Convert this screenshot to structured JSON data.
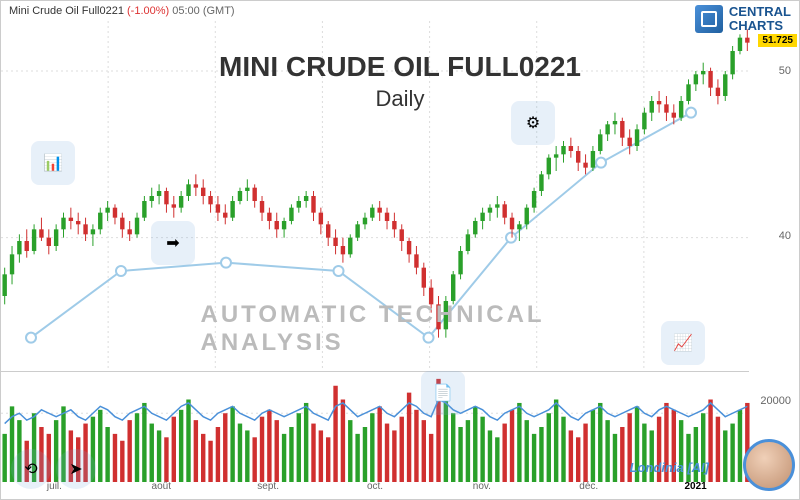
{
  "header": {
    "ticker": "Mini Crude Oil Full0221",
    "change": "(-1.00%)",
    "time": "05:00 (GMT)"
  },
  "logo": {
    "line1": "CENTRAL",
    "line2": "CHARTS"
  },
  "title": {
    "main": "MINI CRUDE OIL FULL0221",
    "sub": "Daily"
  },
  "watermark": "AUTOMATIC  TECHNICAL  ANALYSIS",
  "brand": "Londinia [AI]",
  "price_badge": "51.725",
  "chart": {
    "type": "candlestick",
    "ylim": [
      32,
      53
    ],
    "yticks": [
      40,
      50
    ],
    "xlabels": [
      "juil.",
      "août",
      "sept.",
      "oct.",
      "nov.",
      "déc.",
      "2021"
    ],
    "background_color": "#ffffff",
    "grid_color": "#dddddd",
    "up_color": "#2aa02a",
    "down_color": "#d03030",
    "trend_line_color": "#9fcbe8",
    "trend_marker_color": "#9fcbe8",
    "title_fontsize": 28,
    "label_fontsize": 11,
    "candles": [
      {
        "o": 36.5,
        "h": 38.2,
        "l": 36.0,
        "c": 37.8
      },
      {
        "o": 37.8,
        "h": 39.5,
        "l": 37.2,
        "c": 39.0
      },
      {
        "o": 39.0,
        "h": 40.2,
        "l": 38.5,
        "c": 39.8
      },
      {
        "o": 39.8,
        "h": 40.5,
        "l": 38.8,
        "c": 39.2
      },
      {
        "o": 39.2,
        "h": 40.8,
        "l": 39.0,
        "c": 40.5
      },
      {
        "o": 40.5,
        "h": 41.2,
        "l": 39.8,
        "c": 40.0
      },
      {
        "o": 40.0,
        "h": 40.5,
        "l": 39.0,
        "c": 39.5
      },
      {
        "o": 39.5,
        "h": 40.8,
        "l": 39.2,
        "c": 40.5
      },
      {
        "o": 40.5,
        "h": 41.5,
        "l": 40.0,
        "c": 41.2
      },
      {
        "o": 41.2,
        "h": 41.8,
        "l": 40.5,
        "c": 41.0
      },
      {
        "o": 41.0,
        "h": 41.5,
        "l": 40.2,
        "c": 40.8
      },
      {
        "o": 40.8,
        "h": 41.2,
        "l": 39.8,
        "c": 40.2
      },
      {
        "o": 40.2,
        "h": 40.8,
        "l": 39.5,
        "c": 40.5
      },
      {
        "o": 40.5,
        "h": 41.8,
        "l": 40.2,
        "c": 41.5
      },
      {
        "o": 41.5,
        "h": 42.2,
        "l": 41.0,
        "c": 41.8
      },
      {
        "o": 41.8,
        "h": 42.0,
        "l": 40.8,
        "c": 41.2
      },
      {
        "o": 41.2,
        "h": 41.5,
        "l": 40.0,
        "c": 40.5
      },
      {
        "o": 40.5,
        "h": 41.0,
        "l": 39.8,
        "c": 40.2
      },
      {
        "o": 40.2,
        "h": 41.5,
        "l": 40.0,
        "c": 41.2
      },
      {
        "o": 41.2,
        "h": 42.5,
        "l": 41.0,
        "c": 42.2
      },
      {
        "o": 42.2,
        "h": 43.0,
        "l": 41.8,
        "c": 42.5
      },
      {
        "o": 42.5,
        "h": 43.2,
        "l": 42.0,
        "c": 42.8
      },
      {
        "o": 42.8,
        "h": 43.0,
        "l": 41.5,
        "c": 42.0
      },
      {
        "o": 42.0,
        "h": 42.5,
        "l": 41.2,
        "c": 41.8
      },
      {
        "o": 41.8,
        "h": 42.8,
        "l": 41.5,
        "c": 42.5
      },
      {
        "o": 42.5,
        "h": 43.5,
        "l": 42.2,
        "c": 43.2
      },
      {
        "o": 43.2,
        "h": 43.8,
        "l": 42.5,
        "c": 43.0
      },
      {
        "o": 43.0,
        "h": 43.5,
        "l": 42.0,
        "c": 42.5
      },
      {
        "o": 42.5,
        "h": 42.8,
        "l": 41.5,
        "c": 42.0
      },
      {
        "o": 42.0,
        "h": 42.5,
        "l": 41.0,
        "c": 41.5
      },
      {
        "o": 41.5,
        "h": 42.0,
        "l": 40.8,
        "c": 41.2
      },
      {
        "o": 41.2,
        "h": 42.5,
        "l": 41.0,
        "c": 42.2
      },
      {
        "o": 42.2,
        "h": 43.0,
        "l": 42.0,
        "c": 42.8
      },
      {
        "o": 42.8,
        "h": 43.5,
        "l": 42.2,
        "c": 43.0
      },
      {
        "o": 43.0,
        "h": 43.2,
        "l": 41.8,
        "c": 42.2
      },
      {
        "o": 42.2,
        "h": 42.5,
        "l": 41.0,
        "c": 41.5
      },
      {
        "o": 41.5,
        "h": 41.8,
        "l": 40.5,
        "c": 41.0
      },
      {
        "o": 41.0,
        "h": 41.5,
        "l": 40.0,
        "c": 40.5
      },
      {
        "o": 40.5,
        "h": 41.2,
        "l": 40.0,
        "c": 41.0
      },
      {
        "o": 41.0,
        "h": 42.0,
        "l": 40.8,
        "c": 41.8
      },
      {
        "o": 41.8,
        "h": 42.5,
        "l": 41.5,
        "c": 42.2
      },
      {
        "o": 42.2,
        "h": 42.8,
        "l": 41.8,
        "c": 42.5
      },
      {
        "o": 42.5,
        "h": 42.8,
        "l": 41.0,
        "c": 41.5
      },
      {
        "o": 41.5,
        "h": 41.8,
        "l": 40.2,
        "c": 40.8
      },
      {
        "o": 40.8,
        "h": 41.0,
        "l": 39.5,
        "c": 40.0
      },
      {
        "o": 40.0,
        "h": 40.5,
        "l": 39.0,
        "c": 39.5
      },
      {
        "o": 39.5,
        "h": 40.0,
        "l": 38.5,
        "c": 39.0
      },
      {
        "o": 39.0,
        "h": 40.2,
        "l": 38.8,
        "c": 40.0
      },
      {
        "o": 40.0,
        "h": 41.0,
        "l": 39.8,
        "c": 40.8
      },
      {
        "o": 40.8,
        "h": 41.5,
        "l": 40.5,
        "c": 41.2
      },
      {
        "o": 41.2,
        "h": 42.0,
        "l": 41.0,
        "c": 41.8
      },
      {
        "o": 41.8,
        "h": 42.2,
        "l": 41.0,
        "c": 41.5
      },
      {
        "o": 41.5,
        "h": 41.8,
        "l": 40.5,
        "c": 41.0
      },
      {
        "o": 41.0,
        "h": 41.5,
        "l": 40.0,
        "c": 40.5
      },
      {
        "o": 40.5,
        "h": 40.8,
        "l": 39.2,
        "c": 39.8
      },
      {
        "o": 39.8,
        "h": 40.0,
        "l": 38.5,
        "c": 39.0
      },
      {
        "o": 39.0,
        "h": 39.5,
        "l": 37.8,
        "c": 38.2
      },
      {
        "o": 38.2,
        "h": 38.5,
        "l": 36.5,
        "c": 37.0
      },
      {
        "o": 37.0,
        "h": 37.5,
        "l": 35.5,
        "c": 36.0
      },
      {
        "o": 36.0,
        "h": 36.5,
        "l": 34.0,
        "c": 34.5
      },
      {
        "o": 34.5,
        "h": 36.5,
        "l": 34.0,
        "c": 36.2
      },
      {
        "o": 36.2,
        "h": 38.0,
        "l": 36.0,
        "c": 37.8
      },
      {
        "o": 37.8,
        "h": 39.5,
        "l": 37.5,
        "c": 39.2
      },
      {
        "o": 39.2,
        "h": 40.5,
        "l": 39.0,
        "c": 40.2
      },
      {
        "o": 40.2,
        "h": 41.2,
        "l": 40.0,
        "c": 41.0
      },
      {
        "o": 41.0,
        "h": 41.8,
        "l": 40.5,
        "c": 41.5
      },
      {
        "o": 41.5,
        "h": 42.0,
        "l": 41.0,
        "c": 41.8
      },
      {
        "o": 41.8,
        "h": 42.5,
        "l": 41.2,
        "c": 42.0
      },
      {
        "o": 42.0,
        "h": 42.2,
        "l": 40.8,
        "c": 41.2
      },
      {
        "o": 41.2,
        "h": 41.5,
        "l": 40.0,
        "c": 40.5
      },
      {
        "o": 40.5,
        "h": 41.0,
        "l": 39.8,
        "c": 40.8
      },
      {
        "o": 40.8,
        "h": 42.0,
        "l": 40.5,
        "c": 41.8
      },
      {
        "o": 41.8,
        "h": 43.0,
        "l": 41.5,
        "c": 42.8
      },
      {
        "o": 42.8,
        "h": 44.0,
        "l": 42.5,
        "c": 43.8
      },
      {
        "o": 43.8,
        "h": 45.0,
        "l": 43.5,
        "c": 44.8
      },
      {
        "o": 44.8,
        "h": 45.5,
        "l": 44.0,
        "c": 45.0
      },
      {
        "o": 45.0,
        "h": 45.8,
        "l": 44.5,
        "c": 45.5
      },
      {
        "o": 45.5,
        "h": 46.0,
        "l": 44.8,
        "c": 45.2
      },
      {
        "o": 45.2,
        "h": 45.5,
        "l": 44.0,
        "c": 44.5
      },
      {
        "o": 44.5,
        "h": 45.0,
        "l": 43.8,
        "c": 44.2
      },
      {
        "o": 44.2,
        "h": 45.5,
        "l": 44.0,
        "c": 45.2
      },
      {
        "o": 45.2,
        "h": 46.5,
        "l": 45.0,
        "c": 46.2
      },
      {
        "o": 46.2,
        "h": 47.0,
        "l": 45.8,
        "c": 46.8
      },
      {
        "o": 46.8,
        "h": 47.5,
        "l": 46.2,
        "c": 47.0
      },
      {
        "o": 47.0,
        "h": 47.2,
        "l": 45.5,
        "c": 46.0
      },
      {
        "o": 46.0,
        "h": 46.5,
        "l": 45.0,
        "c": 45.5
      },
      {
        "o": 45.5,
        "h": 46.8,
        "l": 45.2,
        "c": 46.5
      },
      {
        "o": 46.5,
        "h": 47.8,
        "l": 46.2,
        "c": 47.5
      },
      {
        "o": 47.5,
        "h": 48.5,
        "l": 47.0,
        "c": 48.2
      },
      {
        "o": 48.2,
        "h": 48.8,
        "l": 47.5,
        "c": 48.0
      },
      {
        "o": 48.0,
        "h": 48.5,
        "l": 47.0,
        "c": 47.5
      },
      {
        "o": 47.5,
        "h": 48.0,
        "l": 46.8,
        "c": 47.2
      },
      {
        "o": 47.2,
        "h": 48.5,
        "l": 47.0,
        "c": 48.2
      },
      {
        "o": 48.2,
        "h": 49.5,
        "l": 48.0,
        "c": 49.2
      },
      {
        "o": 49.2,
        "h": 50.0,
        "l": 48.8,
        "c": 49.8
      },
      {
        "o": 49.8,
        "h": 50.5,
        "l": 49.2,
        "c": 50.0
      },
      {
        "o": 50.0,
        "h": 50.2,
        "l": 48.5,
        "c": 49.0
      },
      {
        "o": 49.0,
        "h": 49.5,
        "l": 48.0,
        "c": 48.5
      },
      {
        "o": 48.5,
        "h": 50.0,
        "l": 48.2,
        "c": 49.8
      },
      {
        "o": 49.8,
        "h": 51.5,
        "l": 49.5,
        "c": 51.2
      },
      {
        "o": 51.2,
        "h": 52.2,
        "l": 51.0,
        "c": 52.0
      },
      {
        "o": 52.0,
        "h": 52.5,
        "l": 51.2,
        "c": 51.7
      }
    ],
    "trend_points": [
      {
        "x": 0.04,
        "y": 34
      },
      {
        "x": 0.16,
        "y": 38
      },
      {
        "x": 0.3,
        "y": 38.5
      },
      {
        "x": 0.45,
        "y": 38
      },
      {
        "x": 0.57,
        "y": 34
      },
      {
        "x": 0.68,
        "y": 40
      },
      {
        "x": 0.8,
        "y": 44.5
      },
      {
        "x": 0.92,
        "y": 47.5
      }
    ]
  },
  "volume": {
    "ytick": 20000,
    "ylim": [
      0,
      32000
    ],
    "line_color": "#4a90d9",
    "up_color": "#2aa02a",
    "down_color": "#d03030",
    "bars": [
      14000,
      22000,
      18000,
      12000,
      20000,
      16000,
      14000,
      18000,
      22000,
      15000,
      13000,
      17000,
      19000,
      21000,
      16000,
      14000,
      12000,
      18000,
      20000,
      23000,
      17000,
      15000,
      13000,
      19000,
      21000,
      24000,
      18000,
      14000,
      12000,
      16000,
      20000,
      22000,
      17000,
      15000,
      13000,
      19000,
      21000,
      18000,
      14000,
      16000,
      20000,
      23000,
      17000,
      15000,
      13000,
      28000,
      24000,
      18000,
      14000,
      16000,
      20000,
      22000,
      17000,
      15000,
      19000,
      26000,
      21000,
      18000,
      14000,
      30000,
      24000,
      20000,
      16000,
      18000,
      22000,
      19000,
      15000,
      13000,
      17000,
      21000,
      23000,
      18000,
      14000,
      16000,
      20000,
      24000,
      19000,
      15000,
      13000,
      17000,
      21000,
      23000,
      18000,
      14000,
      16000,
      20000,
      22000,
      17000,
      15000,
      19000,
      23000,
      21000,
      18000,
      14000,
      16000,
      20000,
      24000,
      19000,
      15000,
      17000,
      21000,
      23000
    ],
    "line": [
      17000,
      19000,
      20000,
      18000,
      19000,
      21000,
      20000,
      19000,
      20000,
      21000,
      19000,
      18000,
      20000,
      22000,
      21000,
      19000,
      18000,
      20000,
      21000,
      22000,
      20000,
      19000,
      18000,
      20000,
      22000,
      23000,
      21000,
      19000,
      18000,
      20000,
      21000,
      22000,
      20000,
      19000,
      18000,
      20000,
      21000,
      20000,
      19000,
      20000,
      21000,
      22000,
      20000,
      19000,
      18000,
      22000,
      23000,
      21000,
      19000,
      20000,
      21000,
      22000,
      20000,
      19000,
      21000,
      23000,
      22000,
      20000,
      19000,
      24000,
      23000,
      21000,
      20000,
      21000,
      22000,
      21000,
      19000,
      18000,
      20000,
      21000,
      22000,
      20000,
      19000,
      20000,
      21000,
      23000,
      21000,
      19000,
      18000,
      20000,
      21000,
      22000,
      20000,
      19000,
      20000,
      21000,
      22000,
      20000,
      19000,
      21000,
      22000,
      21000,
      20000,
      19000,
      20000,
      21000,
      23000,
      21000,
      19000,
      20000,
      21000,
      22000
    ]
  }
}
